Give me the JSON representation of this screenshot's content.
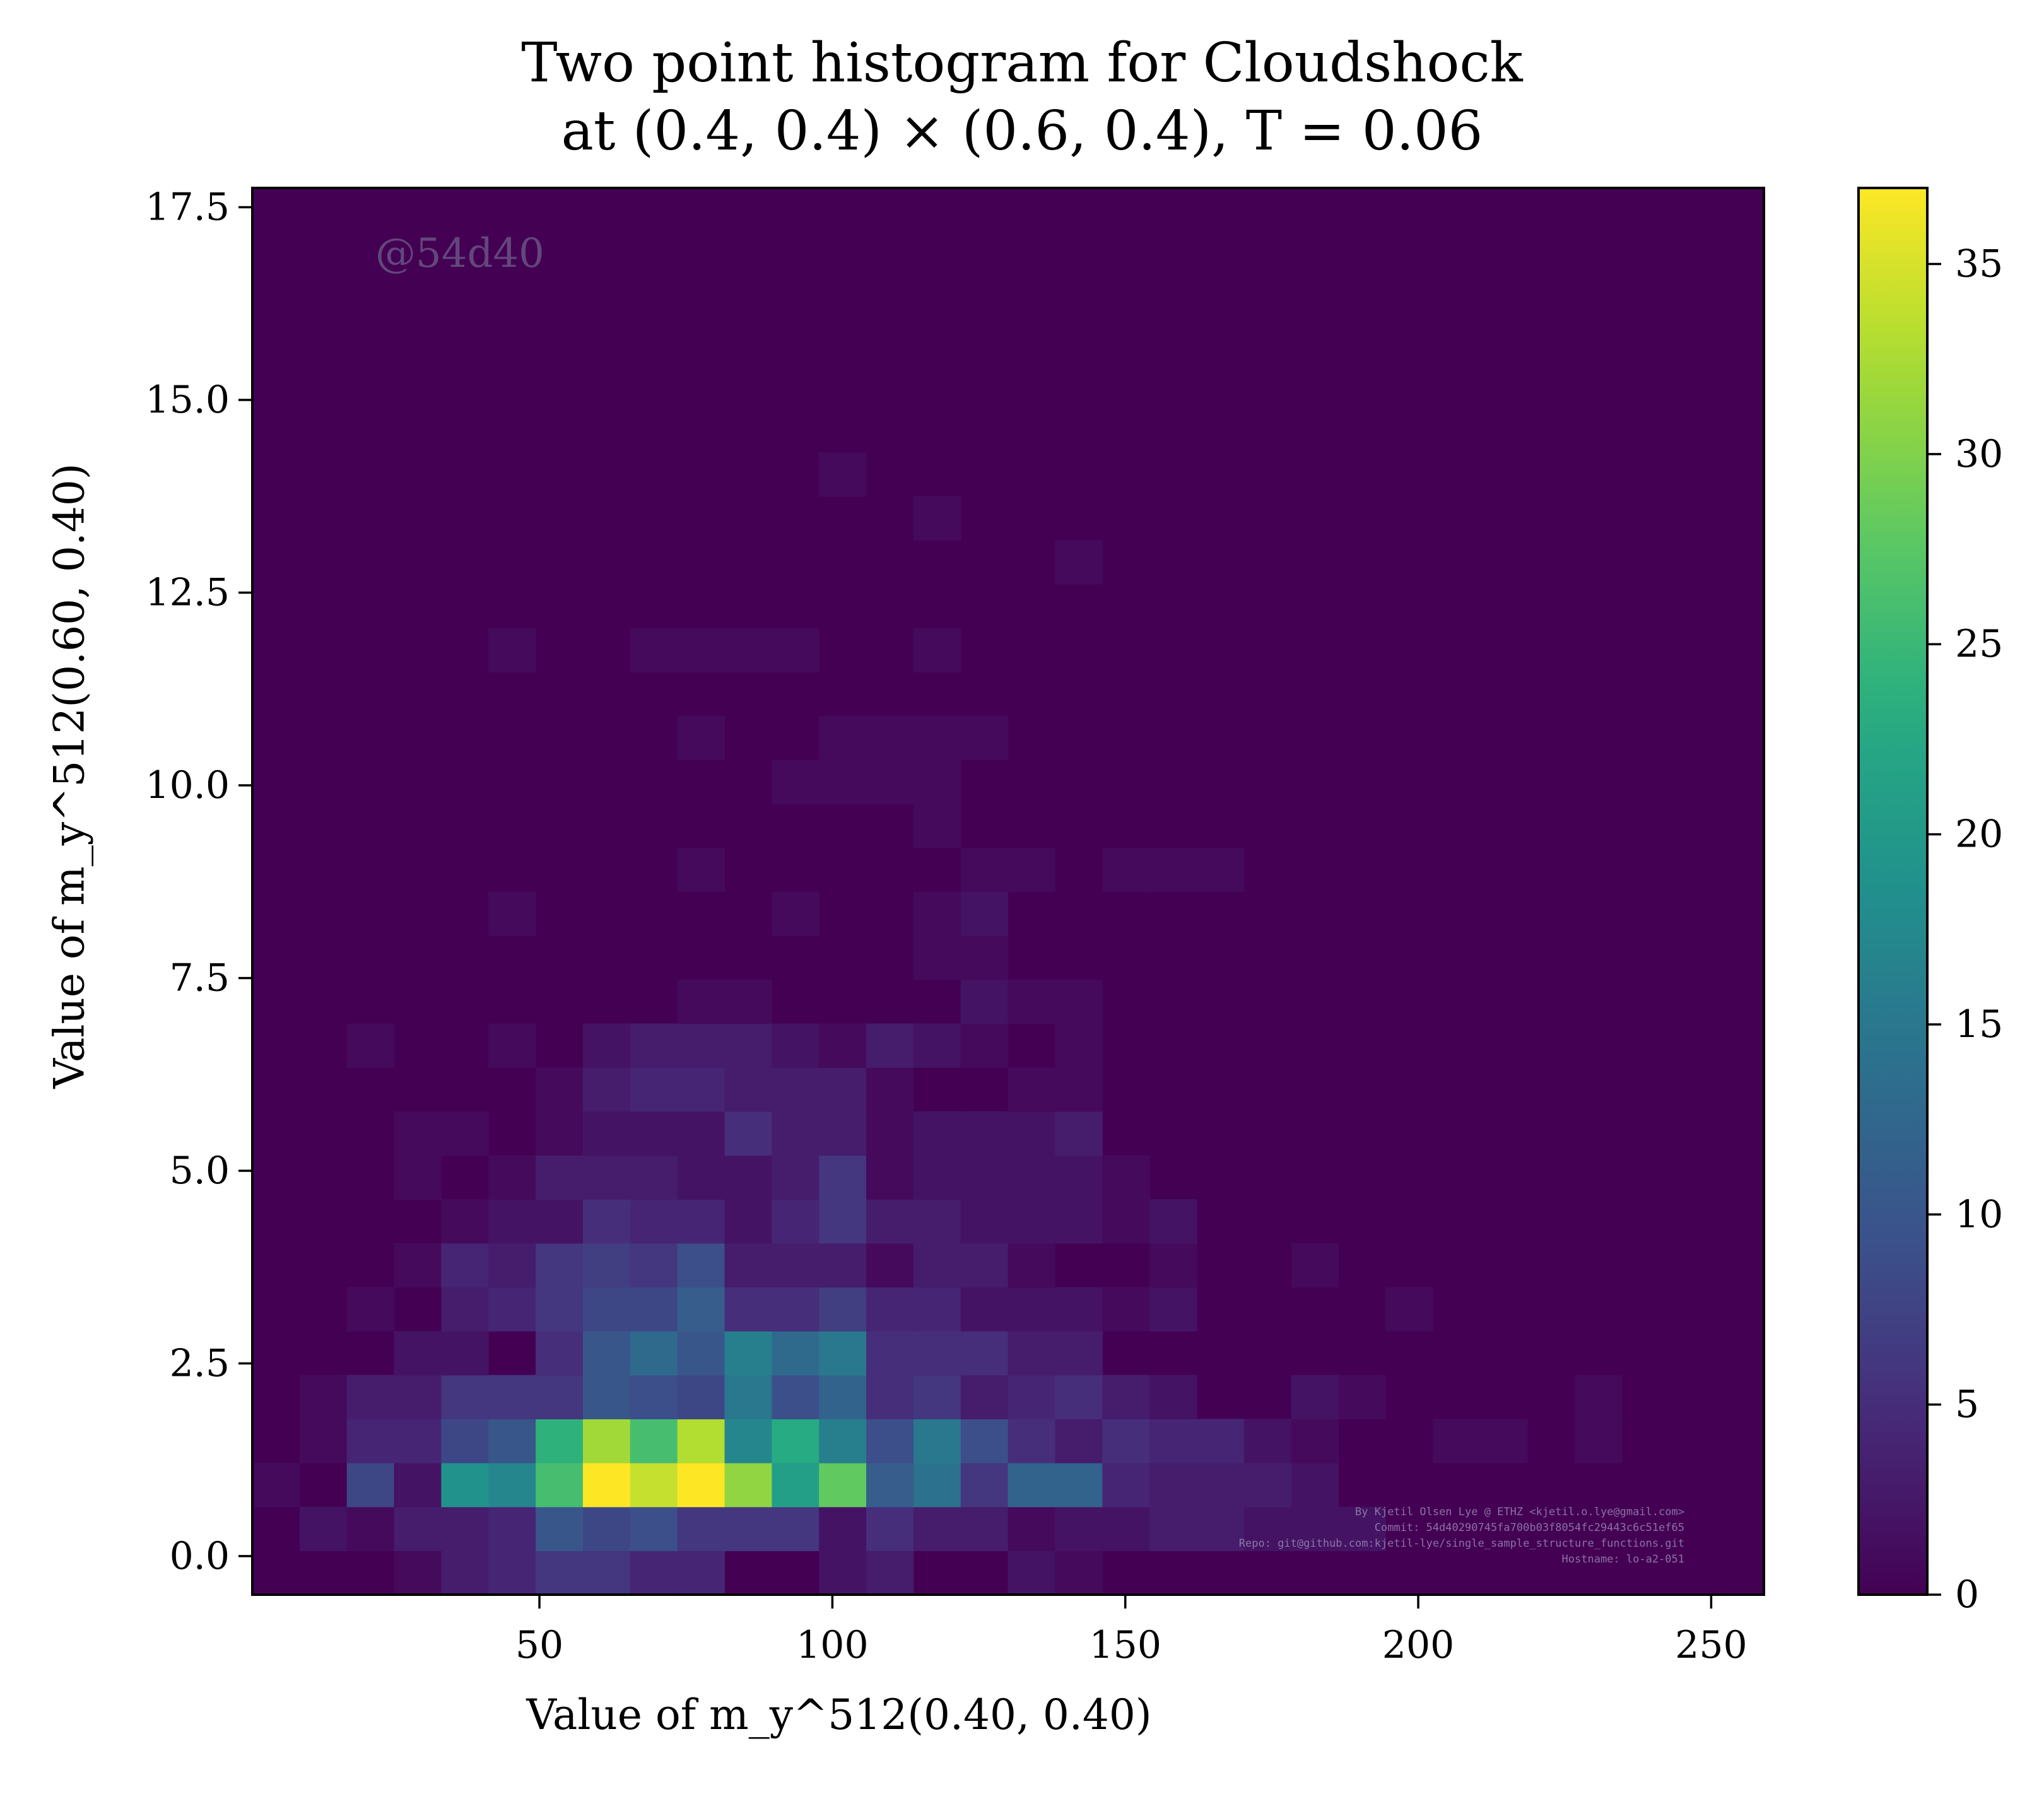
{
  "chart_data": {
    "type": "heatmap",
    "title_line1": "Two point histogram for Cloudshock",
    "title_line2": "at (0.4, 0.4) × (0.6, 0.4), T = 0.06",
    "xlabel": "Value of m_y^512(0.40, 0.40)",
    "ylabel": "Value of m_y^512(0.60, 0.40)",
    "xlim": [
      1,
      259
    ],
    "ylim": [
      -0.5,
      17.75
    ],
    "x_ticks": [
      50,
      100,
      150,
      200,
      250
    ],
    "x_tick_labels": [
      "50",
      "100",
      "150",
      "200",
      "250"
    ],
    "y_ticks": [
      0.0,
      2.5,
      5.0,
      7.5,
      10.0,
      12.5,
      15.0,
      17.5
    ],
    "y_tick_labels": [
      "0.0",
      "2.5",
      "5.0",
      "7.5",
      "10.0",
      "12.5",
      "15.0",
      "17.5"
    ],
    "colorbar": {
      "min": 0,
      "max": 37,
      "ticks": [
        0,
        5,
        10,
        15,
        20,
        25,
        30,
        35
      ],
      "tick_labels": [
        "0",
        "5",
        "10",
        "15",
        "20",
        "25",
        "30",
        "35"
      ],
      "colormap": "viridis"
    },
    "bins": {
      "x_edges_start": 1,
      "x_bin_width": 8.06,
      "y_edges_start": -0.5,
      "y_bin_width": 0.57,
      "nx": 32,
      "ny": 32
    },
    "cells": [
      [
        0,
        3,
        1
      ],
      [
        1,
        1,
        2
      ],
      [
        2,
        4,
        1
      ],
      [
        3,
        4,
        1
      ],
      [
        4,
        1,
        1
      ],
      [
        0,
        4,
        3
      ],
      [
        0,
        5,
        4
      ],
      [
        0,
        6,
        6
      ],
      [
        0,
        7,
        6
      ],
      [
        0,
        8,
        4
      ],
      [
        0,
        9,
        4
      ],
      [
        0,
        12,
        2
      ],
      [
        0,
        13,
        3
      ],
      [
        0,
        16,
        2
      ],
      [
        0,
        17,
        1
      ],
      [
        1,
        2,
        1
      ],
      [
        1,
        3,
        3
      ],
      [
        1,
        4,
        3
      ],
      [
        1,
        5,
        4
      ],
      [
        1,
        6,
        10
      ],
      [
        1,
        7,
        8
      ],
      [
        1,
        8,
        9
      ],
      [
        1,
        9,
        6
      ],
      [
        1,
        10,
        6
      ],
      [
        1,
        11,
        6
      ],
      [
        1,
        12,
        2
      ],
      [
        1,
        13,
        5
      ],
      [
        1,
        14,
        3
      ],
      [
        1,
        15,
        3
      ],
      [
        1,
        16,
        1
      ],
      [
        1,
        17,
        2
      ],
      [
        1,
        18,
        2
      ],
      [
        1,
        19,
        3
      ],
      [
        1,
        20,
        3
      ],
      [
        1,
        21,
        2
      ],
      [
        1,
        22,
        2
      ],
      [
        1,
        23,
        2
      ],
      [
        2,
        0,
        1
      ],
      [
        2,
        2,
        8
      ],
      [
        2,
        3,
        2
      ],
      [
        2,
        4,
        19
      ],
      [
        2,
        5,
        17
      ],
      [
        2,
        6,
        26
      ],
      [
        2,
        7,
        37
      ],
      [
        2,
        8,
        34
      ],
      [
        2,
        9,
        37
      ],
      [
        2,
        10,
        31
      ],
      [
        2,
        11,
        21
      ],
      [
        2,
        12,
        28
      ],
      [
        2,
        13,
        11
      ],
      [
        2,
        14,
        14
      ],
      [
        2,
        15,
        6
      ],
      [
        2,
        16,
        12
      ],
      [
        2,
        17,
        12
      ],
      [
        2,
        18,
        4
      ],
      [
        2,
        19,
        3
      ],
      [
        2,
        20,
        3
      ],
      [
        2,
        21,
        3
      ],
      [
        2,
        22,
        2
      ],
      [
        3,
        1,
        1
      ],
      [
        3,
        2,
        4
      ],
      [
        3,
        3,
        4
      ],
      [
        3,
        4,
        8
      ],
      [
        3,
        5,
        10
      ],
      [
        3,
        6,
        24
      ],
      [
        3,
        7,
        32
      ],
      [
        3,
        8,
        26
      ],
      [
        3,
        9,
        33
      ],
      [
        3,
        10,
        17
      ],
      [
        3,
        11,
        23
      ],
      [
        3,
        12,
        16
      ],
      [
        3,
        13,
        9
      ],
      [
        3,
        14,
        15
      ],
      [
        3,
        15,
        9
      ],
      [
        3,
        16,
        5
      ],
      [
        3,
        17,
        3
      ],
      [
        3,
        18,
        5
      ],
      [
        3,
        19,
        4
      ],
      [
        3,
        20,
        4
      ],
      [
        3,
        21,
        2
      ],
      [
        3,
        22,
        1
      ],
      [
        3,
        25,
        1
      ],
      [
        3,
        26,
        1
      ],
      [
        3,
        28,
        1
      ],
      [
        4,
        2,
        3
      ],
      [
        4,
        3,
        3
      ],
      [
        4,
        4,
        6
      ],
      [
        4,
        5,
        6
      ],
      [
        4,
        6,
        6
      ],
      [
        4,
        7,
        10
      ],
      [
        4,
        8,
        9
      ],
      [
        4,
        9,
        8
      ],
      [
        4,
        10,
        15
      ],
      [
        4,
        11,
        9
      ],
      [
        4,
        12,
        12
      ],
      [
        4,
        13,
        5
      ],
      [
        4,
        14,
        6
      ],
      [
        4,
        15,
        3
      ],
      [
        4,
        16,
        4
      ],
      [
        4,
        17,
        5
      ],
      [
        4,
        18,
        3
      ],
      [
        4,
        19,
        2
      ],
      [
        4,
        22,
        2
      ],
      [
        4,
        23,
        1
      ],
      [
        4,
        28,
        1
      ],
      [
        5,
        3,
        2
      ],
      [
        5,
        4,
        2
      ],
      [
        5,
        6,
        5
      ],
      [
        5,
        7,
        10
      ],
      [
        5,
        8,
        13
      ],
      [
        5,
        9,
        10
      ],
      [
        5,
        10,
        16
      ],
      [
        5,
        11,
        13
      ],
      [
        5,
        12,
        15
      ],
      [
        5,
        13,
        5
      ],
      [
        5,
        14,
        5
      ],
      [
        5,
        15,
        5
      ],
      [
        5,
        16,
        3
      ],
      [
        5,
        17,
        3
      ],
      [
        6,
        2,
        1
      ],
      [
        6,
        4,
        3
      ],
      [
        6,
        5,
        4
      ],
      [
        6,
        6,
        6
      ],
      [
        6,
        7,
        8
      ],
      [
        6,
        8,
        8
      ],
      [
        6,
        9,
        11
      ],
      [
        6,
        10,
        5
      ],
      [
        6,
        11,
        5
      ],
      [
        6,
        12,
        7
      ],
      [
        6,
        13,
        4
      ],
      [
        6,
        14,
        4
      ],
      [
        6,
        15,
        2
      ],
      [
        6,
        16,
        2
      ],
      [
        6,
        17,
        2
      ],
      [
        6,
        18,
        1
      ],
      [
        6,
        19,
        2
      ],
      [
        6,
        24,
        1
      ],
      [
        7,
        3,
        1
      ],
      [
        7,
        4,
        4
      ],
      [
        7,
        5,
        3
      ],
      [
        7,
        6,
        6
      ],
      [
        7,
        7,
        7
      ],
      [
        7,
        8,
        6
      ],
      [
        7,
        9,
        9
      ],
      [
        7,
        10,
        3
      ],
      [
        7,
        11,
        3
      ],
      [
        7,
        12,
        3
      ],
      [
        7,
        13,
        1
      ],
      [
        7,
        14,
        3
      ],
      [
        7,
        15,
        3
      ],
      [
        7,
        16,
        1
      ],
      [
        7,
        19,
        1
      ],
      [
        7,
        22,
        1
      ],
      [
        8,
        4,
        1
      ],
      [
        8,
        5,
        2
      ],
      [
        8,
        6,
        2
      ],
      [
        8,
        7,
        5
      ],
      [
        8,
        8,
        4
      ],
      [
        8,
        9,
        4
      ],
      [
        8,
        10,
        2
      ],
      [
        8,
        11,
        4
      ],
      [
        8,
        12,
        6
      ],
      [
        8,
        13,
        3
      ],
      [
        8,
        14,
        3
      ],
      [
        8,
        15,
        2
      ],
      [
        8,
        16,
        2
      ],
      [
        8,
        17,
        2
      ],
      [
        8,
        18,
        1
      ],
      [
        8,
        19,
        2
      ],
      [
        9,
        3,
        1
      ],
      [
        9,
        5,
        1
      ],
      [
        9,
        6,
        3
      ],
      [
        9,
        7,
        3
      ],
      [
        9,
        8,
        3
      ],
      [
        9,
        9,
        2
      ],
      [
        9,
        10,
        2
      ],
      [
        9,
        11,
        3
      ],
      [
        9,
        12,
        6
      ],
      [
        9,
        13,
        1
      ],
      [
        9,
        14,
        2
      ],
      [
        9,
        15,
        2
      ],
      [
        9,
        16,
        2
      ],
      [
        9,
        17,
        2
      ],
      [
        9,
        18,
        1
      ],
      [
        10,
        3,
        1
      ],
      [
        10,
        4,
        1
      ],
      [
        10,
        6,
        1
      ],
      [
        10,
        7,
        2
      ],
      [
        10,
        8,
        2
      ],
      [
        10,
        9,
        2
      ],
      [
        10,
        10,
        5
      ],
      [
        10,
        11,
        3
      ],
      [
        10,
        12,
        3
      ],
      [
        10,
        13,
        1
      ],
      [
        10,
        14,
        2
      ],
      [
        10,
        15,
        2
      ],
      [
        10,
        16,
        2
      ],
      [
        10,
        17,
        3
      ],
      [
        11,
        6,
        1
      ],
      [
        11,
        7,
        3
      ],
      [
        11,
        8,
        4
      ],
      [
        11,
        9,
        4
      ],
      [
        11,
        10,
        3
      ],
      [
        11,
        11,
        3
      ],
      [
        11,
        12,
        3
      ],
      [
        11,
        13,
        1
      ],
      [
        11,
        16,
        1
      ],
      [
        11,
        17,
        1
      ],
      [
        12,
        2,
        1
      ],
      [
        12,
        5,
        1
      ],
      [
        12,
        7,
        2
      ],
      [
        12,
        8,
        3
      ],
      [
        12,
        9,
        3
      ],
      [
        12,
        10,
        3
      ],
      [
        12,
        11,
        2
      ],
      [
        12,
        12,
        1
      ],
      [
        12,
        13,
        3
      ],
      [
        12,
        14,
        2
      ],
      [
        12,
        15,
        1
      ],
      [
        12,
        17,
        1
      ],
      [
        13,
        9,
        1
      ],
      [
        13,
        10,
        1
      ],
      [
        13,
        15,
        2
      ],
      [
        13,
        16,
        1
      ],
      [
        13,
        17,
        1
      ],
      [
        14,
        14,
        1
      ],
      [
        14,
        15,
        1
      ],
      [
        15,
        5,
        1
      ],
      [
        15,
        11,
        1
      ],
      [
        15,
        14,
        1
      ],
      [
        15,
        15,
        2
      ],
      [
        16,
        9,
        1
      ],
      [
        16,
        15,
        1
      ],
      [
        16,
        16,
        1
      ],
      [
        16,
        18,
        1
      ],
      [
        16,
        19,
        1
      ],
      [
        16,
        20,
        1
      ],
      [
        17,
        14,
        1
      ],
      [
        18,
        11,
        1
      ],
      [
        18,
        12,
        1
      ],
      [
        18,
        13,
        1
      ],
      [
        18,
        14,
        1
      ],
      [
        19,
        9,
        1
      ],
      [
        19,
        12,
        1
      ],
      [
        19,
        13,
        1
      ],
      [
        19,
        14,
        1
      ],
      [
        19,
        15,
        1
      ],
      [
        21,
        5,
        1
      ],
      [
        21,
        8,
        1
      ],
      [
        21,
        9,
        1
      ],
      [
        21,
        10,
        1
      ],
      [
        21,
        11,
        1
      ],
      [
        21,
        14,
        1
      ],
      [
        23,
        17,
        1
      ],
      [
        24,
        14,
        1
      ],
      [
        25,
        12,
        1
      ]
    ]
  },
  "watermark": "@54d40",
  "credit": [
    "By Kjetil Olsen Lye @ ETHZ <kjetil.o.lye@gmail.com>",
    "Commit: 54d40290745fa700b03f8054fc29443c6c51ef65",
    "Repo: git@github.com:kjetil-lye/single_sample_structure_functions.git",
    "Hostname: lo-a2-051"
  ]
}
